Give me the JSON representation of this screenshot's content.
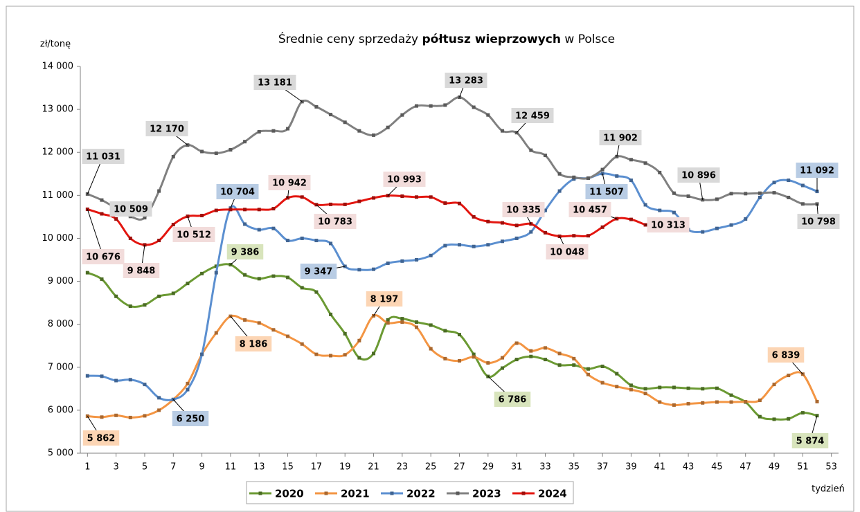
{
  "chart_data": {
    "type": "line",
    "title": [
      "Średnie ceny sprzedaży",
      "półtusz wieprzowych",
      "w Polsce"
    ],
    "y_label": "zł/tonę",
    "x_label": "tydzień",
    "x": [
      1,
      2,
      3,
      4,
      5,
      6,
      7,
      8,
      9,
      10,
      11,
      12,
      13,
      14,
      15,
      16,
      17,
      18,
      19,
      20,
      21,
      22,
      23,
      24,
      25,
      26,
      27,
      28,
      29,
      30,
      31,
      32,
      33,
      34,
      35,
      36,
      37,
      38,
      39,
      40,
      41,
      42,
      43,
      44,
      45,
      46,
      47,
      48,
      49,
      50,
      51,
      52
    ],
    "xlim": [
      0.5,
      53.5
    ],
    "xticks": [
      1,
      3,
      5,
      7,
      9,
      11,
      13,
      15,
      17,
      19,
      21,
      23,
      25,
      27,
      29,
      31,
      33,
      35,
      37,
      39,
      41,
      43,
      45,
      47,
      49,
      51,
      53
    ],
    "ylim": [
      5000,
      14000
    ],
    "yticks": [
      {
        "value": 5000,
        "label": "5 000"
      },
      {
        "value": 6000,
        "label": "6 000"
      },
      {
        "value": 7000,
        "label": "7 000"
      },
      {
        "value": 8000,
        "label": "8 000"
      },
      {
        "value": 9000,
        "label": "9 000"
      },
      {
        "value": 10000,
        "label": "10 000"
      },
      {
        "value": 11000,
        "label": "11 000"
      },
      {
        "value": 12000,
        "label": "12 000"
      },
      {
        "value": 13000,
        "label": "13 000"
      },
      {
        "value": 14000,
        "label": "14 000"
      }
    ],
    "grid": false,
    "legend": "bottom",
    "series": [
      {
        "name": "2020",
        "color": "#6b9a33",
        "values": [
          9200,
          9050,
          8650,
          8420,
          8450,
          8650,
          8720,
          8950,
          9180,
          9350,
          9386,
          9150,
          9060,
          9120,
          9090,
          8850,
          8750,
          8230,
          7780,
          7220,
          7320,
          8100,
          8130,
          8050,
          7980,
          7850,
          7760,
          7300,
          6786,
          6980,
          7180,
          7250,
          7180,
          7050,
          7050,
          6960,
          7020,
          6850,
          6580,
          6500,
          6530,
          6530,
          6510,
          6500,
          6510,
          6350,
          6190,
          5850,
          5790,
          5800,
          5940,
          5874
        ],
        "value_labels": [
          null,
          null,
          null,
          null,
          null,
          null,
          null,
          null,
          null,
          null,
          "9 386",
          null,
          null,
          null,
          null,
          null,
          null,
          null,
          null,
          null,
          null,
          null,
          null,
          null,
          null,
          null,
          null,
          null,
          "6 786",
          null,
          null,
          null,
          null,
          null,
          null,
          null,
          null,
          null,
          null,
          null,
          null,
          null,
          null,
          null,
          null,
          null,
          null,
          null,
          null,
          null,
          null,
          "5 874"
        ]
      },
      {
        "name": "2021",
        "color": "#f39543",
        "values": [
          5862,
          5840,
          5880,
          5830,
          5870,
          6000,
          6250,
          6620,
          7300,
          7800,
          8186,
          8100,
          8030,
          7870,
          7720,
          7540,
          7300,
          7270,
          7290,
          7620,
          8197,
          8030,
          8050,
          7930,
          7430,
          7200,
          7150,
          7240,
          7100,
          7220,
          7560,
          7380,
          7450,
          7320,
          7200,
          6830,
          6640,
          6550,
          6480,
          6390,
          6190,
          6120,
          6150,
          6170,
          6190,
          6190,
          6200,
          6230,
          6600,
          6810,
          6839,
          6200
        ],
        "value_labels": [
          "5 862",
          null,
          null,
          null,
          null,
          null,
          null,
          null,
          null,
          null,
          "8 186",
          null,
          null,
          null,
          null,
          null,
          null,
          null,
          null,
          null,
          "8 197",
          null,
          null,
          null,
          null,
          null,
          null,
          null,
          null,
          null,
          null,
          null,
          null,
          null,
          null,
          null,
          null,
          null,
          null,
          null,
          null,
          null,
          null,
          null,
          null,
          null,
          null,
          null,
          null,
          null,
          "6 839",
          null
        ]
      },
      {
        "name": "2022",
        "color": "#5b8fd0",
        "values": [
          6800,
          6790,
          6690,
          6710,
          6600,
          6290,
          6250,
          6480,
          7300,
          9200,
          10704,
          10330,
          10200,
          10230,
          9950,
          10000,
          9950,
          9880,
          9347,
          9270,
          9280,
          9420,
          9470,
          9500,
          9600,
          9830,
          9850,
          9810,
          9850,
          9930,
          10000,
          10150,
          10650,
          11100,
          11380,
          11400,
          11507,
          11450,
          11350,
          10780,
          10650,
          10600,
          10200,
          10150,
          10230,
          10310,
          10450,
          10950,
          11300,
          11350,
          11230,
          11092
        ],
        "value_labels": [
          null,
          null,
          null,
          null,
          null,
          null,
          "6 250",
          null,
          null,
          null,
          "10 704",
          null,
          null,
          null,
          null,
          null,
          null,
          null,
          "9 347",
          null,
          null,
          null,
          null,
          null,
          null,
          null,
          null,
          null,
          null,
          null,
          null,
          null,
          null,
          null,
          null,
          null,
          "11 507",
          null,
          null,
          null,
          null,
          null,
          null,
          null,
          null,
          null,
          null,
          null,
          null,
          null,
          null,
          "11 092"
        ]
      },
      {
        "name": "2023",
        "color": "#808080",
        "values": [
          11031,
          10890,
          10700,
          10509,
          10480,
          11100,
          11900,
          12170,
          12020,
          11980,
          12060,
          12250,
          12480,
          12500,
          12550,
          13181,
          13060,
          12880,
          12700,
          12500,
          12400,
          12580,
          12870,
          13080,
          13080,
          13100,
          13283,
          13050,
          12870,
          12500,
          12459,
          12050,
          11930,
          11500,
          11420,
          11400,
          11600,
          11902,
          11830,
          11750,
          11530,
          11050,
          10980,
          10896,
          10910,
          11040,
          11040,
          11050,
          11060,
          10950,
          10800,
          10798
        ],
        "value_labels": [
          "11 031",
          null,
          null,
          "10 509",
          null,
          null,
          null,
          "12 170",
          null,
          null,
          null,
          null,
          null,
          null,
          null,
          "13 181",
          null,
          null,
          null,
          null,
          null,
          null,
          null,
          null,
          null,
          null,
          "13 283",
          null,
          null,
          null,
          "12 459",
          null,
          null,
          null,
          null,
          null,
          null,
          "11 902",
          null,
          null,
          null,
          null,
          null,
          "10 896",
          null,
          null,
          null,
          null,
          null,
          null,
          null,
          "10 798"
        ]
      },
      {
        "name": "2024",
        "color": "#e3150f",
        "values": [
          10676,
          10570,
          10450,
          10000,
          9848,
          9950,
          10320,
          10512,
          10530,
          10650,
          10670,
          10670,
          10670,
          10690,
          10942,
          10960,
          10783,
          10790,
          10790,
          10860,
          10940,
          10993,
          10980,
          10960,
          10960,
          10820,
          10810,
          10500,
          10390,
          10360,
          10300,
          10335,
          10130,
          10048,
          10060,
          10060,
          10260,
          10457,
          10440,
          10313,
          null,
          null,
          null,
          null,
          null,
          null,
          null,
          null,
          null,
          null,
          null,
          null
        ],
        "value_labels": [
          "10 676",
          null,
          null,
          null,
          "9 848",
          null,
          null,
          "10 512",
          null,
          null,
          null,
          null,
          null,
          null,
          "10 942",
          null,
          "10 783",
          null,
          null,
          null,
          null,
          "10 993",
          null,
          null,
          null,
          null,
          null,
          null,
          null,
          null,
          null,
          "10 335",
          null,
          "10 048",
          null,
          null,
          null,
          "10 457",
          null,
          "10 313",
          null,
          null,
          null,
          null,
          null,
          null,
          null,
          null,
          null,
          null,
          null,
          null
        ]
      }
    ]
  }
}
